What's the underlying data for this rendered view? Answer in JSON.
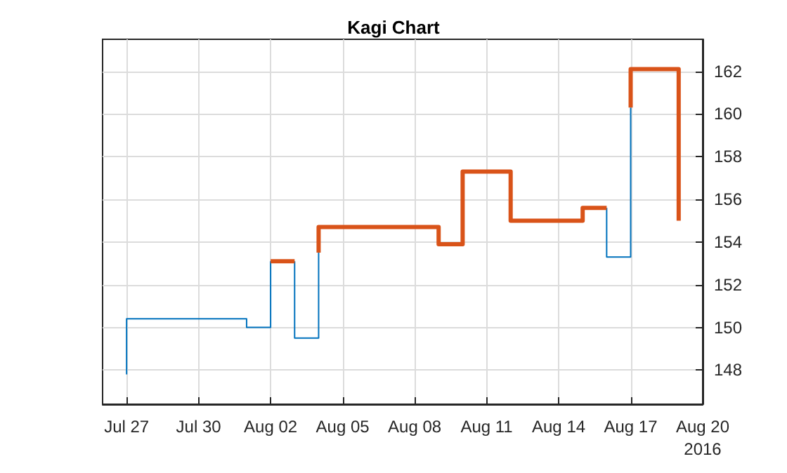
{
  "chart_data": {
    "type": "line",
    "title": "Kagi Chart",
    "xlim": [
      "2016-07-26",
      "2016-08-20"
    ],
    "xticks": [
      {
        "value": "2016-07-27",
        "label": "Jul 27"
      },
      {
        "value": "2016-07-30",
        "label": "Jul 30"
      },
      {
        "value": "2016-08-02",
        "label": "Aug 02"
      },
      {
        "value": "2016-08-05",
        "label": "Aug 05"
      },
      {
        "value": "2016-08-08",
        "label": "Aug 08"
      },
      {
        "value": "2016-08-11",
        "label": "Aug 11"
      },
      {
        "value": "2016-08-14",
        "label": "Aug 14"
      },
      {
        "value": "2016-08-17",
        "label": "Aug 17"
      },
      {
        "value": "2016-08-20",
        "label": "Aug 20\n2016"
      }
    ],
    "ylim": [
      146.4,
      163.5
    ],
    "yticks": [
      148,
      150,
      152,
      154,
      156,
      158,
      160,
      162
    ],
    "grid": true,
    "marker": "none",
    "line_style": "solid",
    "series": [
      {
        "color": "#0072bd",
        "x": [
          "2016-07-27",
          "2016-07-27",
          "2016-08-01",
          "2016-08-01",
          "2016-08-02",
          "2016-08-02"
        ],
        "values": [
          147.8,
          150.4,
          150.4,
          150.0,
          150.0,
          153.1
        ]
      },
      {
        "color": "#0072bd",
        "x": [
          "2016-08-03",
          "2016-08-03",
          "2016-08-04",
          "2016-08-04"
        ],
        "values": [
          153.1,
          149.5,
          149.5,
          153.5
        ]
      },
      {
        "color": "#0072bd",
        "x": [
          "2016-08-16",
          "2016-08-16",
          "2016-08-17",
          "2016-08-17"
        ],
        "values": [
          155.6,
          153.3,
          153.3,
          160.3
        ]
      },
      {
        "color": "#d95319",
        "x": [
          "2016-08-02",
          "2016-08-03"
        ],
        "values": [
          153.1,
          153.1
        ]
      },
      {
        "color": "#d95319",
        "x": [
          "2016-08-04",
          "2016-08-04",
          "2016-08-09",
          "2016-08-09",
          "2016-08-10",
          "2016-08-10",
          "2016-08-12",
          "2016-08-12",
          "2016-08-15",
          "2016-08-15",
          "2016-08-16"
        ],
        "values": [
          153.5,
          154.7,
          154.7,
          153.9,
          153.9,
          157.3,
          157.3,
          155.0,
          155.0,
          155.6,
          155.6
        ]
      },
      {
        "color": "#d95319",
        "x": [
          "2016-08-17",
          "2016-08-17",
          "2016-08-19",
          "2016-08-19"
        ],
        "values": [
          160.3,
          162.1,
          162.1,
          155.0
        ]
      }
    ]
  }
}
